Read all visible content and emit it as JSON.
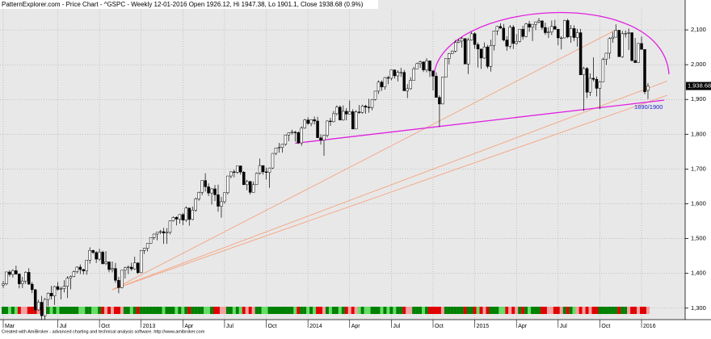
{
  "chart_data": {
    "type": "candlestick",
    "title": "PatternExplorer.com - Price Chart - ^GSPC - Weekly 12-01-2016 Open 1926.12, Hi 1947.38, Lo 1901.1, Close 1938.68 (0.9%)",
    "footer": "Created with AmiBroker - advanced charting and technical analysis software. http://www.amibroker.com",
    "annotation": "1890/1900",
    "last_label": "1,938.68",
    "up_color": "#ffffff",
    "down_color": "#000000",
    "grid": true,
    "ylim": [
      1267,
      2186
    ],
    "yticks": [
      {
        "value": 1300,
        "label": "1,300"
      },
      {
        "value": 1400,
        "label": "1,400"
      },
      {
        "value": 1500,
        "label": "1,500"
      },
      {
        "value": 1600,
        "label": "1,600"
      },
      {
        "value": 1700,
        "label": "1,700"
      },
      {
        "value": 1800,
        "label": "1,800"
      },
      {
        "value": 1900,
        "label": "1,900"
      },
      {
        "value": 2000,
        "label": "2,000"
      },
      {
        "value": 2100,
        "label": "2,100"
      }
    ],
    "categories": [
      "Mar",
      null,
      null,
      null,
      null,
      null,
      null,
      null,
      null,
      null,
      null,
      null,
      null,
      null,
      null,
      null,
      null,
      "Jul",
      null,
      null,
      null,
      null,
      null,
      null,
      null,
      null,
      null,
      null,
      null,
      null,
      "Oct",
      null,
      null,
      null,
      null,
      null,
      null,
      null,
      null,
      null,
      null,
      null,
      null,
      "2013",
      null,
      null,
      null,
      null,
      null,
      null,
      null,
      null,
      null,
      null,
      null,
      null,
      "Apr",
      null,
      null,
      null,
      null,
      null,
      null,
      null,
      null,
      null,
      null,
      null,
      null,
      "Jul",
      null,
      null,
      null,
      null,
      null,
      null,
      null,
      null,
      null,
      null,
      null,
      null,
      "Oct",
      null,
      null,
      null,
      null,
      null,
      null,
      null,
      null,
      null,
      null,
      null,
      null,
      "2014",
      null,
      null,
      null,
      null,
      null,
      null,
      null,
      null,
      null,
      null,
      null,
      null,
      "Apr",
      null,
      null,
      null,
      null,
      null,
      null,
      null,
      null,
      null,
      null,
      null,
      null,
      "Jul",
      null,
      null,
      null,
      null,
      null,
      null,
      null,
      null,
      null,
      null,
      null,
      null,
      "Oct",
      null,
      null,
      null,
      null,
      null,
      null,
      null,
      null,
      null,
      null,
      null,
      null,
      "2015",
      null,
      null,
      null,
      null,
      null,
      null,
      null,
      null,
      null,
      null,
      null,
      null,
      "Apr",
      null,
      null,
      null,
      null,
      null,
      null,
      null,
      null,
      null,
      null,
      null,
      null,
      "Jul",
      null,
      null,
      null,
      null,
      null,
      null,
      null,
      null,
      null,
      null,
      null,
      null,
      "Oct",
      null,
      null,
      null,
      null,
      null,
      null,
      null,
      null,
      null,
      null,
      null,
      null,
      "2016",
      null,
      null
    ],
    "ohlc": [
      [
        1366,
        1378,
        1358,
        1370
      ],
      [
        1370,
        1405,
        1366,
        1404
      ],
      [
        1404,
        1409,
        1391,
        1397
      ],
      [
        1397,
        1412,
        1388,
        1408
      ],
      [
        1408,
        1422,
        1396,
        1398
      ],
      [
        1398,
        1400,
        1357,
        1370
      ],
      [
        1370,
        1390,
        1358,
        1378
      ],
      [
        1378,
        1406,
        1370,
        1403
      ],
      [
        1403,
        1415,
        1367,
        1369
      ],
      [
        1369,
        1375,
        1343,
        1353
      ],
      [
        1353,
        1355,
        1291,
        1295
      ],
      [
        1295,
        1324,
        1292,
        1317
      ],
      [
        1317,
        1335,
        1266,
        1278
      ],
      [
        1278,
        1329,
        1266,
        1325
      ],
      [
        1325,
        1345,
        1306,
        1343
      ],
      [
        1343,
        1364,
        1325,
        1335
      ],
      [
        1335,
        1364,
        1309,
        1362
      ],
      [
        1362,
        1375,
        1350,
        1354
      ],
      [
        1354,
        1362,
        1325,
        1356
      ],
      [
        1356,
        1380,
        1345,
        1363
      ],
      [
        1363,
        1392,
        1329,
        1386
      ],
      [
        1386,
        1394,
        1354,
        1391
      ],
      [
        1391,
        1408,
        1389,
        1405
      ],
      [
        1405,
        1420,
        1400,
        1418
      ],
      [
        1418,
        1426,
        1398,
        1411
      ],
      [
        1411,
        1413,
        1397,
        1407
      ],
      [
        1407,
        1438,
        1396,
        1438
      ],
      [
        1438,
        1475,
        1428,
        1466
      ],
      [
        1466,
        1468,
        1456,
        1460
      ],
      [
        1460,
        1464,
        1430,
        1441
      ],
      [
        1441,
        1471,
        1436,
        1461
      ],
      [
        1461,
        1465,
        1425,
        1428
      ],
      [
        1428,
        1464,
        1424,
        1433
      ],
      [
        1433,
        1434,
        1403,
        1411
      ],
      [
        1411,
        1434,
        1403,
        1414
      ],
      [
        1414,
        1430,
        1373,
        1380
      ],
      [
        1380,
        1390,
        1343,
        1359
      ],
      [
        1359,
        1409,
        1357,
        1409
      ],
      [
        1409,
        1419,
        1385,
        1416
      ],
      [
        1416,
        1423,
        1398,
        1418
      ],
      [
        1418,
        1431,
        1407,
        1413
      ],
      [
        1413,
        1448,
        1410,
        1430
      ],
      [
        1430,
        1432,
        1398,
        1402
      ],
      [
        1402,
        1467,
        1402,
        1466
      ],
      [
        1466,
        1473,
        1456,
        1472
      ],
      [
        1472,
        1486,
        1463,
        1486
      ],
      [
        1486,
        1503,
        1485,
        1503
      ],
      [
        1503,
        1514,
        1497,
        1513
      ],
      [
        1513,
        1518,
        1495,
        1518
      ],
      [
        1518,
        1525,
        1513,
        1520
      ],
      [
        1520,
        1531,
        1485,
        1516
      ],
      [
        1516,
        1530,
        1485,
        1518
      ],
      [
        1518,
        1552,
        1512,
        1551
      ],
      [
        1551,
        1564,
        1549,
        1561
      ],
      [
        1561,
        1564,
        1538,
        1556
      ],
      [
        1556,
        1570,
        1543,
        1569
      ],
      [
        1569,
        1574,
        1539,
        1553
      ],
      [
        1553,
        1593,
        1548,
        1588
      ],
      [
        1588,
        1588,
        1537,
        1555
      ],
      [
        1555,
        1592,
        1553,
        1582
      ],
      [
        1582,
        1618,
        1577,
        1614
      ],
      [
        1614,
        1635,
        1609,
        1633
      ],
      [
        1633,
        1667,
        1625,
        1667
      ],
      [
        1667,
        1688,
        1635,
        1649
      ],
      [
        1649,
        1659,
        1622,
        1631
      ],
      [
        1631,
        1645,
        1598,
        1643
      ],
      [
        1643,
        1654,
        1608,
        1626
      ],
      [
        1626,
        1655,
        1577,
        1593
      ],
      [
        1593,
        1620,
        1560,
        1606
      ],
      [
        1606,
        1632,
        1601,
        1632
      ],
      [
        1632,
        1680,
        1627,
        1680
      ],
      [
        1680,
        1693,
        1673,
        1692
      ],
      [
        1692,
        1698,
        1676,
        1691
      ],
      [
        1691,
        1709,
        1686,
        1709
      ],
      [
        1709,
        1710,
        1684,
        1691
      ],
      [
        1691,
        1694,
        1654,
        1655
      ],
      [
        1655,
        1669,
        1639,
        1664
      ],
      [
        1664,
        1666,
        1627,
        1633
      ],
      [
        1633,
        1664,
        1633,
        1655
      ],
      [
        1655,
        1690,
        1655,
        1688
      ],
      [
        1688,
        1730,
        1684,
        1710
      ],
      [
        1710,
        1710,
        1684,
        1692
      ],
      [
        1692,
        1704,
        1670,
        1690
      ],
      [
        1690,
        1704,
        1646,
        1703
      ],
      [
        1703,
        1745,
        1700,
        1745
      ],
      [
        1745,
        1760,
        1740,
        1760
      ],
      [
        1760,
        1775,
        1747,
        1762
      ],
      [
        1762,
        1772,
        1747,
        1771
      ],
      [
        1771,
        1799,
        1767,
        1798
      ],
      [
        1798,
        1805,
        1780,
        1804
      ],
      [
        1804,
        1813,
        1799,
        1806
      ],
      [
        1806,
        1810,
        1779,
        1805
      ],
      [
        1805,
        1808,
        1772,
        1775
      ],
      [
        1775,
        1823,
        1767,
        1818
      ],
      [
        1818,
        1844,
        1816,
        1841
      ],
      [
        1841,
        1849,
        1827,
        1831
      ],
      [
        1831,
        1843,
        1823,
        1842
      ],
      [
        1842,
        1851,
        1828,
        1838
      ],
      [
        1838,
        1850,
        1790,
        1790
      ],
      [
        1790,
        1800,
        1770,
        1783
      ],
      [
        1783,
        1798,
        1738,
        1797
      ],
      [
        1797,
        1840,
        1791,
        1838
      ],
      [
        1838,
        1847,
        1824,
        1836
      ],
      [
        1836,
        1867,
        1834,
        1859
      ],
      [
        1859,
        1883,
        1854,
        1878
      ],
      [
        1878,
        1883,
        1840,
        1841
      ],
      [
        1841,
        1883,
        1839,
        1866
      ],
      [
        1866,
        1875,
        1840,
        1858
      ],
      [
        1858,
        1897,
        1857,
        1865
      ],
      [
        1865,
        1872,
        1815,
        1815
      ],
      [
        1815,
        1869,
        1815,
        1864
      ],
      [
        1864,
        1884,
        1859,
        1863
      ],
      [
        1863,
        1885,
        1859,
        1881
      ],
      [
        1881,
        1885,
        1859,
        1878
      ],
      [
        1878,
        1902,
        1862,
        1877
      ],
      [
        1877,
        1901,
        1869,
        1900
      ],
      [
        1900,
        1924,
        1897,
        1924
      ],
      [
        1924,
        1955,
        1916,
        1950
      ],
      [
        1950,
        1955,
        1925,
        1936
      ],
      [
        1936,
        1964,
        1928,
        1963
      ],
      [
        1963,
        1968,
        1944,
        1961
      ],
      [
        1961,
        1985,
        1955,
        1985
      ],
      [
        1985,
        1986,
        1960,
        1968
      ],
      [
        1968,
        1984,
        1952,
        1978
      ],
      [
        1978,
        1991,
        1965,
        1978
      ],
      [
        1978,
        1985,
        1925,
        1925
      ],
      [
        1925,
        1944,
        1904,
        1931
      ],
      [
        1931,
        1964,
        1928,
        1955
      ],
      [
        1955,
        1994,
        1955,
        1988
      ],
      [
        1988,
        2006,
        1988,
        2003
      ],
      [
        2003,
        2012,
        1991,
        2008
      ],
      [
        2008,
        2009,
        1979,
        1985
      ],
      [
        1985,
        2019,
        1978,
        2011
      ],
      [
        2011,
        2011,
        1965,
        1982
      ],
      [
        1982,
        1985,
        1926,
        1967
      ],
      [
        1967,
        1978,
        1906,
        1906
      ],
      [
        1906,
        1912,
        1821,
        1887
      ],
      [
        1887,
        1965,
        1886,
        1964
      ],
      [
        1964,
        2018,
        1964,
        2018
      ],
      [
        2018,
        2034,
        2001,
        2032
      ],
      [
        2032,
        2041,
        2031,
        2039
      ],
      [
        2039,
        2071,
        2035,
        2064
      ],
      [
        2064,
        2075,
        2062,
        2068
      ],
      [
        2068,
        2079,
        2049,
        2075
      ],
      [
        2075,
        2076,
        2002,
        2002
      ],
      [
        2002,
        2077,
        1973,
        2071
      ],
      [
        2071,
        2094,
        2069,
        2089
      ],
      [
        2089,
        2093,
        2046,
        2058
      ],
      [
        2058,
        2064,
        1992,
        2045
      ],
      [
        2045,
        2046,
        1988,
        2019
      ],
      [
        2019,
        2064,
        2017,
        2051
      ],
      [
        2051,
        2057,
        1989,
        1995
      ],
      [
        1995,
        2072,
        1980,
        2055
      ],
      [
        2055,
        2097,
        2041,
        2097
      ],
      [
        2097,
        2111,
        2085,
        2110
      ],
      [
        2110,
        2119,
        2103,
        2105
      ],
      [
        2105,
        2117,
        2067,
        2071
      ],
      [
        2071,
        2082,
        2040,
        2053
      ],
      [
        2053,
        2114,
        2046,
        2108
      ],
      [
        2108,
        2114,
        2045,
        2061
      ],
      [
        2061,
        2088,
        2057,
        2067
      ],
      [
        2067,
        2102,
        2064,
        2102
      ],
      [
        2102,
        2112,
        2072,
        2081
      ],
      [
        2081,
        2120,
        2079,
        2117
      ],
      [
        2117,
        2126,
        2094,
        2108
      ],
      [
        2108,
        2117,
        2068,
        2116
      ],
      [
        2116,
        2124,
        2099,
        2123
      ],
      [
        2123,
        2134,
        2119,
        2126
      ],
      [
        2126,
        2127,
        2100,
        2107
      ],
      [
        2107,
        2121,
        2086,
        2092
      ],
      [
        2092,
        2108,
        2077,
        2094
      ],
      [
        2094,
        2127,
        2085,
        2110
      ],
      [
        2110,
        2129,
        2101,
        2102
      ],
      [
        2102,
        2103,
        2056,
        2077
      ],
      [
        2077,
        2082,
        2044,
        2077
      ],
      [
        2077,
        2129,
        2076,
        2127
      ],
      [
        2127,
        2132,
        2076,
        2080
      ],
      [
        2080,
        2114,
        2063,
        2104
      ],
      [
        2104,
        2113,
        2068,
        2078
      ],
      [
        2078,
        2103,
        2052,
        2092
      ],
      [
        2092,
        2103,
        1971,
        1971
      ],
      [
        1971,
        1994,
        1867,
        1989
      ],
      [
        1989,
        1993,
        1904,
        1921
      ],
      [
        1921,
        1975,
        1910,
        1961
      ],
      [
        1961,
        2021,
        1952,
        1958
      ],
      [
        1958,
        1966,
        1909,
        1932
      ],
      [
        1932,
        1953,
        1872,
        1951
      ],
      [
        1951,
        2020,
        1951,
        2015
      ],
      [
        2015,
        2034,
        1999,
        2033
      ],
      [
        2033,
        2079,
        2017,
        2075
      ],
      [
        2075,
        2094,
        2063,
        2079
      ],
      [
        2079,
        2116,
        2079,
        2099
      ],
      [
        2099,
        2100,
        2023,
        2023
      ],
      [
        2023,
        2097,
        2020,
        2089
      ],
      [
        2089,
        2098,
        2078,
        2090
      ],
      [
        2090,
        2104,
        2042,
        2092
      ],
      [
        2092,
        2093,
        2009,
        2012
      ],
      [
        2012,
        2077,
        2006,
        2006
      ],
      [
        2006,
        2062,
        2006,
        2061
      ],
      [
        2061,
        2081,
        2043,
        2044
      ],
      [
        2044,
        2044,
        1915,
        1922
      ],
      [
        1926.12,
        1947.38,
        1901.1,
        1938.68
      ]
    ],
    "trendlines": [
      {
        "color": "#f4a582",
        "x": [
          34,
          191
        ],
        "y": [
          1353,
          2100
        ]
      },
      {
        "color": "#f4a582",
        "x": [
          34,
          207
        ],
        "y": [
          1353,
          1953
        ]
      },
      {
        "color": "#f4a582",
        "x": [
          34,
          207
        ],
        "y": [
          1353,
          1912
        ]
      },
      {
        "color": "#e020e0",
        "x": [
          91,
          206
        ],
        "y": [
          1774,
          1898
        ]
      }
    ]
  }
}
